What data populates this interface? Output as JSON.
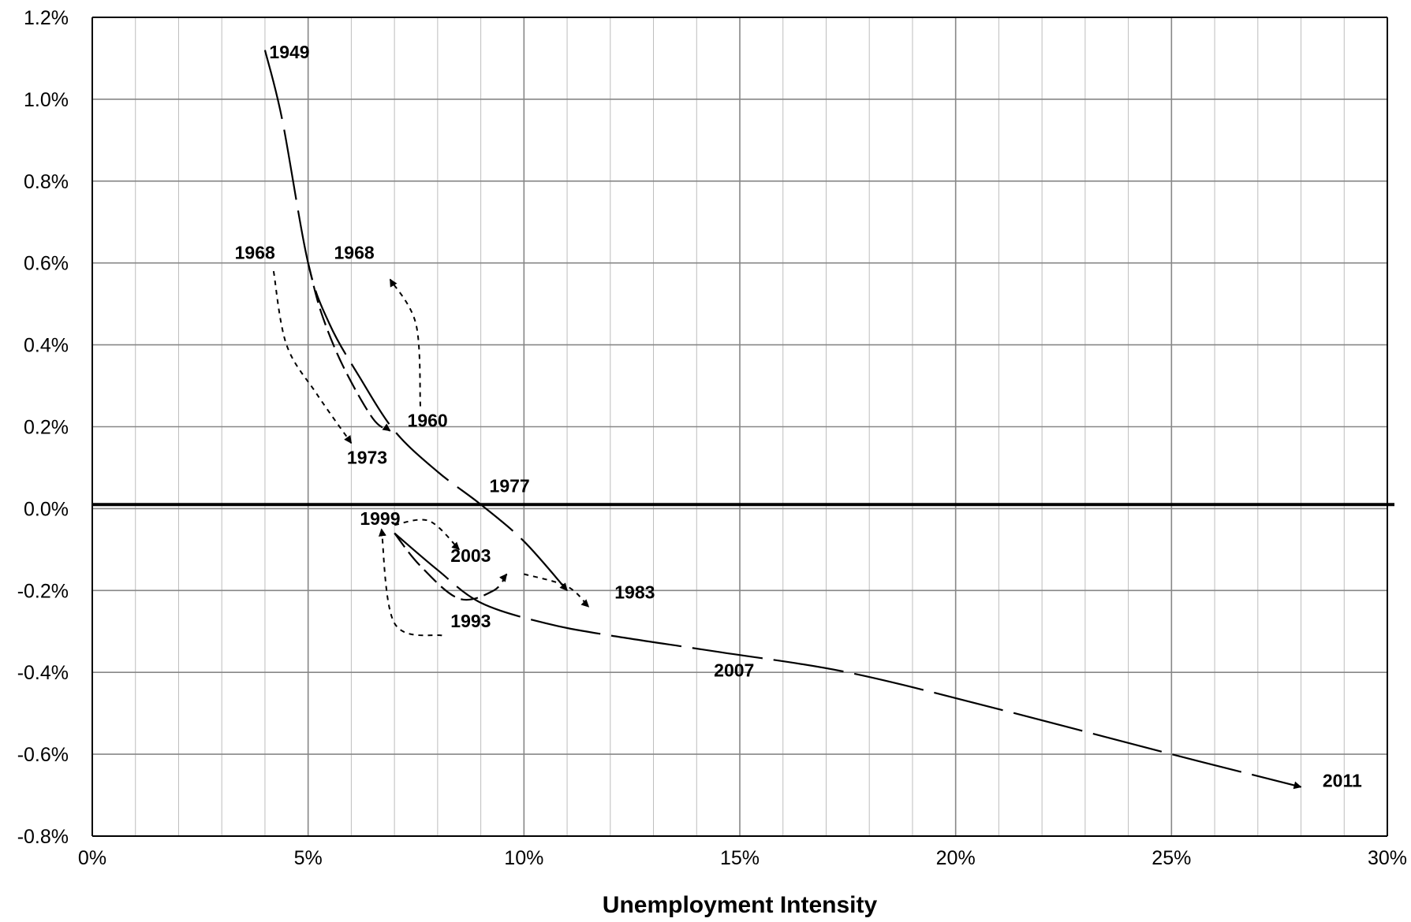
{
  "chart_data": {
    "type": "line",
    "title": "",
    "xlabel": "Unemployment Intensity",
    "ylabel": "",
    "xlim": [
      0,
      30
    ],
    "ylim": [
      -0.8,
      1.2
    ],
    "x_ticks": [
      "0%",
      "5%",
      "10%",
      "15%",
      "20%",
      "25%",
      "30%"
    ],
    "y_ticks": [
      "-0.8%",
      "-0.6%",
      "-0.4%",
      "-0.2%",
      "0.0%",
      "0.2%",
      "0.4%",
      "0.6%",
      "0.8%",
      "1.0%",
      "1.2%"
    ],
    "grid": true,
    "reference_line_y": 0.01,
    "series": [
      {
        "style": "long-dash",
        "points": [
          [
            4.0,
            1.12
          ],
          [
            4.4,
            0.95
          ],
          [
            5.0,
            0.6
          ],
          [
            5.5,
            0.45
          ],
          [
            6.2,
            0.32
          ],
          [
            7.0,
            0.19
          ],
          [
            8.0,
            0.09
          ],
          [
            9.0,
            0.01
          ],
          [
            10.0,
            -0.08
          ],
          [
            11.0,
            -0.2
          ]
        ]
      },
      {
        "style": "dash",
        "points": [
          [
            5.0,
            0.6
          ],
          [
            5.3,
            0.48
          ],
          [
            5.8,
            0.35
          ],
          [
            6.5,
            0.22
          ],
          [
            6.9,
            0.19
          ]
        ]
      },
      {
        "style": "dotted",
        "points": [
          [
            4.2,
            0.58
          ],
          [
            4.5,
            0.4
          ],
          [
            5.2,
            0.28
          ],
          [
            6.0,
            0.16
          ]
        ]
      },
      {
        "style": "dotted",
        "points": [
          [
            7.6,
            0.25
          ],
          [
            7.5,
            0.45
          ],
          [
            6.9,
            0.56
          ]
        ]
      },
      {
        "style": "dotted",
        "points": [
          [
            7.0,
            -0.04
          ],
          [
            7.8,
            -0.03
          ],
          [
            8.5,
            -0.1
          ]
        ]
      },
      {
        "style": "dotted",
        "points": [
          [
            8.1,
            -0.31
          ],
          [
            7.0,
            -0.28
          ],
          [
            6.7,
            -0.05
          ]
        ]
      },
      {
        "style": "dash",
        "points": [
          [
            7.0,
            -0.06
          ],
          [
            7.6,
            -0.14
          ],
          [
            8.5,
            -0.22
          ],
          [
            9.3,
            -0.2
          ],
          [
            9.6,
            -0.16
          ]
        ]
      },
      {
        "style": "dotted",
        "points": [
          [
            10.0,
            -0.16
          ],
          [
            11.0,
            -0.19
          ],
          [
            11.5,
            -0.24
          ]
        ]
      },
      {
        "style": "long-dash",
        "points": [
          [
            7.0,
            -0.06
          ],
          [
            8.0,
            -0.15
          ],
          [
            9.0,
            -0.23
          ],
          [
            10.5,
            -0.28
          ],
          [
            12.0,
            -0.31
          ],
          [
            14.5,
            -0.35
          ],
          [
            17.5,
            -0.4
          ],
          [
            21.0,
            -0.49
          ],
          [
            25.0,
            -0.6
          ],
          [
            28.0,
            -0.68
          ]
        ]
      }
    ],
    "annotations": [
      {
        "text": "1949",
        "x": 4.1,
        "y": 1.1
      },
      {
        "text": "1968",
        "x": 3.3,
        "y": 0.61
      },
      {
        "text": "1968",
        "x": 5.6,
        "y": 0.61
      },
      {
        "text": "1960",
        "x": 7.3,
        "y": 0.2
      },
      {
        "text": "1973",
        "x": 5.9,
        "y": 0.11
      },
      {
        "text": "1977",
        "x": 9.2,
        "y": 0.04
      },
      {
        "text": "1999",
        "x": 6.2,
        "y": -0.04
      },
      {
        "text": "2003",
        "x": 8.3,
        "y": -0.13
      },
      {
        "text": "1983",
        "x": 12.1,
        "y": -0.22
      },
      {
        "text": "1993",
        "x": 8.3,
        "y": -0.29
      },
      {
        "text": "2007",
        "x": 14.4,
        "y": -0.41
      },
      {
        "text": "2011",
        "x": 28.5,
        "y": -0.68
      }
    ]
  }
}
